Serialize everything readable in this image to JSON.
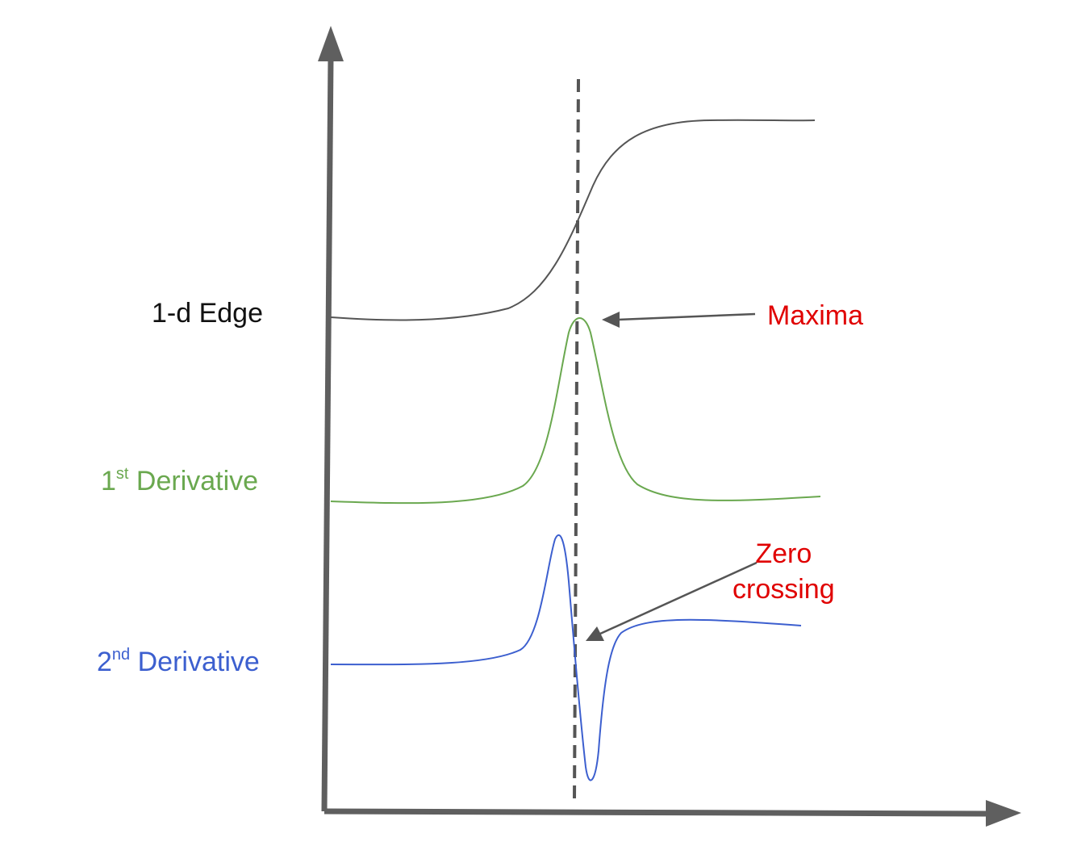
{
  "labels": {
    "edge": "1-d Edge",
    "first_derivative": {
      "number": "1",
      "suffix": "st",
      "text": " Derivative"
    },
    "second_derivative": {
      "number": "2",
      "suffix": "nd",
      "text": " Derivative"
    },
    "maxima": "Maxima",
    "zero_crossing_line1": "Zero",
    "zero_crossing_line2": "crossing"
  },
  "colors": {
    "axis": "#5f5f5f",
    "edge_curve": "#555555",
    "first_derivative": "#6aa84f",
    "second_derivative": "#3c5fcf",
    "annotation": "#e00000",
    "edge_label": "#111111",
    "dashed_line": "#555555"
  }
}
